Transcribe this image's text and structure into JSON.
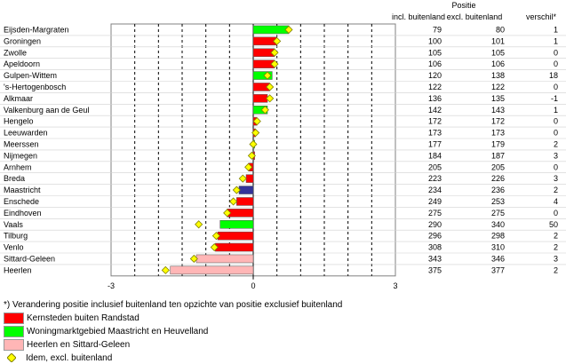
{
  "chart_data": {
    "type": "bar",
    "orientation": "horizontal",
    "header_top": "Positie",
    "columns": [
      "incl. buitenland",
      "excl. buitenland",
      "verschil*"
    ],
    "xlim": [
      -3,
      3
    ],
    "xticks": [
      "-3",
      "0",
      "3"
    ],
    "grid": true,
    "rows": [
      {
        "name": "Eijsden-Margraten",
        "value": 0.75,
        "marker": 0.75,
        "group": 1,
        "incl": "79",
        "excl": "80",
        "diff": "1"
      },
      {
        "name": "Groningen",
        "value": 0.5,
        "marker": 0.5,
        "group": 0,
        "incl": "100",
        "excl": "101",
        "diff": "1"
      },
      {
        "name": "Zwolle",
        "value": 0.45,
        "marker": 0.45,
        "group": 0,
        "incl": "105",
        "excl": "105",
        "diff": "0"
      },
      {
        "name": "Apeldoorn",
        "value": 0.45,
        "marker": 0.45,
        "group": 0,
        "incl": "106",
        "excl": "106",
        "diff": "0"
      },
      {
        "name": "Gulpen-Wittem",
        "value": 0.4,
        "marker": 0.3,
        "group": 1,
        "incl": "120",
        "excl": "138",
        "diff": "18"
      },
      {
        "name": "'s-Hertogenbosch",
        "value": 0.35,
        "marker": 0.35,
        "group": 0,
        "incl": "122",
        "excl": "122",
        "diff": "0"
      },
      {
        "name": "Alkmaar",
        "value": 0.3,
        "marker": 0.35,
        "group": 0,
        "incl": "136",
        "excl": "135",
        "diff": "-1"
      },
      {
        "name": "Valkenburg aan de Geul",
        "value": 0.3,
        "marker": 0.25,
        "group": 1,
        "incl": "142",
        "excl": "143",
        "diff": "1"
      },
      {
        "name": "Hengelo",
        "value": 0.08,
        "marker": 0.08,
        "group": 0,
        "incl": "172",
        "excl": "172",
        "diff": "0"
      },
      {
        "name": "Leeuwarden",
        "value": 0.05,
        "marker": 0.05,
        "group": 0,
        "incl": "173",
        "excl": "173",
        "diff": "0"
      },
      {
        "name": "Meerssen",
        "value": 0.03,
        "marker": 0.0,
        "group": 1,
        "incl": "177",
        "excl": "179",
        "diff": "2"
      },
      {
        "name": "Nijmegen",
        "value": 0.03,
        "marker": -0.03,
        "group": 0,
        "incl": "184",
        "excl": "187",
        "diff": "3"
      },
      {
        "name": "Arnhem",
        "value": -0.1,
        "marker": -0.1,
        "group": 0,
        "incl": "205",
        "excl": "205",
        "diff": "0"
      },
      {
        "name": "Breda",
        "value": -0.15,
        "marker": -0.22,
        "group": 0,
        "incl": "223",
        "excl": "226",
        "diff": "3"
      },
      {
        "name": "Maastricht",
        "value": -0.3,
        "marker": -0.35,
        "group": 3,
        "incl": "234",
        "excl": "236",
        "diff": "2"
      },
      {
        "name": "Enschede",
        "value": -0.35,
        "marker": -0.42,
        "group": 0,
        "incl": "249",
        "excl": "253",
        "diff": "4"
      },
      {
        "name": "Eindhoven",
        "value": -0.55,
        "marker": -0.55,
        "group": 0,
        "incl": "275",
        "excl": "275",
        "diff": "0"
      },
      {
        "name": "Vaals",
        "value": -0.7,
        "marker": -1.15,
        "group": 1,
        "incl": "290",
        "excl": "340",
        "diff": "50"
      },
      {
        "name": "Tilburg",
        "value": -0.75,
        "marker": -0.78,
        "group": 0,
        "incl": "296",
        "excl": "298",
        "diff": "2"
      },
      {
        "name": "Venlo",
        "value": -0.8,
        "marker": -0.82,
        "group": 0,
        "incl": "308",
        "excl": "310",
        "diff": "2"
      },
      {
        "name": "Sittard-Geleen",
        "value": -1.2,
        "marker": -1.25,
        "group": 2,
        "incl": "343",
        "excl": "346",
        "diff": "3"
      },
      {
        "name": "Heerlen",
        "value": -1.75,
        "marker": -1.85,
        "group": 2,
        "incl": "375",
        "excl": "377",
        "diff": "2"
      }
    ],
    "group_colors": [
      "#ff0000",
      "#00ff00",
      "#ffb6b6",
      "#333399"
    ],
    "marker_color": "#ffff00",
    "footnote": "*) Verandering positie inclusief buitenland ten opzichte van positie exclusief buitenland",
    "legend": [
      {
        "label": "Kernsteden buiten Randstad",
        "color": "#ff0000"
      },
      {
        "label": "Woningmarktgebied Maastricht en Heuvelland",
        "color": "#00ff00"
      },
      {
        "label": "Heerlen en Sittard-Geleen",
        "color": "#ffb6b6"
      },
      {
        "label": "Idem, excl. buitenland",
        "color": "#ffff00",
        "symbol": "diamond"
      }
    ]
  }
}
